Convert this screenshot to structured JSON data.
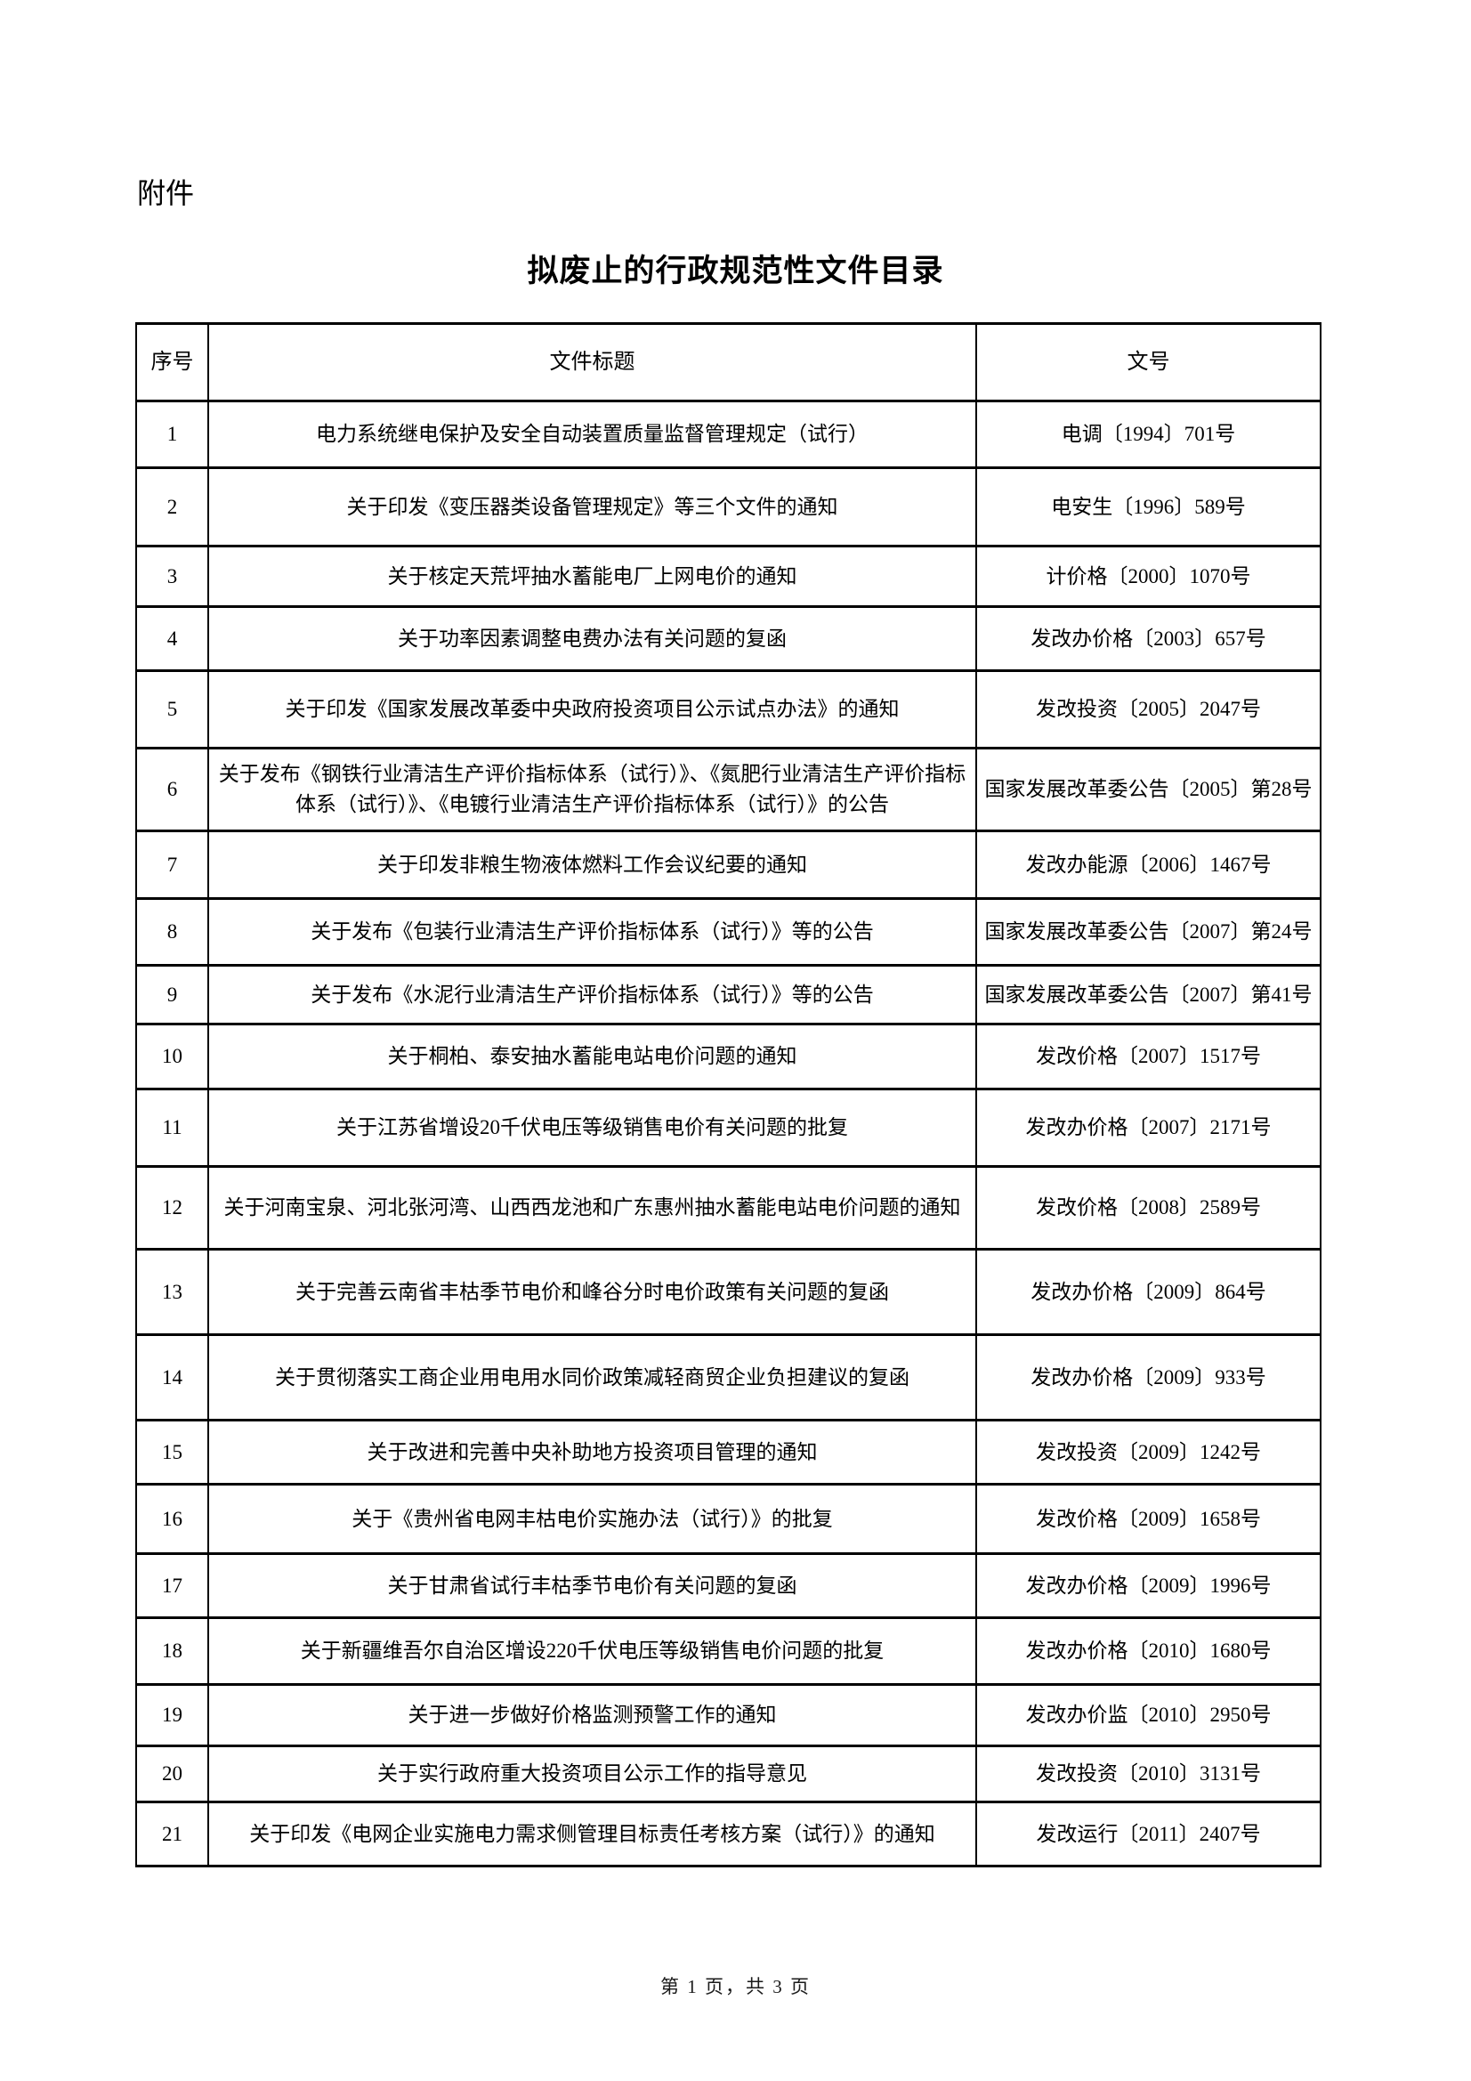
{
  "page": {
    "attachment_label": "附件",
    "title": "拟废止的行政规范性文件目录",
    "footer": "第 1 页，共 3 页"
  },
  "table": {
    "headers": [
      "序号",
      "文件标题",
      "文号"
    ],
    "rows": [
      {
        "no": "1",
        "title": "电力系统继电保护及安全自动装置质量监督管理规定（试行）",
        "doc_no": "电调〔1994〕701号"
      },
      {
        "no": "2",
        "title": "关于印发《变压器类设备管理规定》等三个文件的通知",
        "doc_no": "电安生〔1996〕589号"
      },
      {
        "no": "3",
        "title": "关于核定天荒坪抽水蓄能电厂上网电价的通知",
        "doc_no": "计价格〔2000〕1070号"
      },
      {
        "no": "4",
        "title": "关于功率因素调整电费办法有关问题的复函",
        "doc_no": "发改办价格〔2003〕657号"
      },
      {
        "no": "5",
        "title": "关于印发《国家发展改革委中央政府投资项目公示试点办法》的通知",
        "doc_no": "发改投资〔2005〕2047号"
      },
      {
        "no": "6",
        "title": "关于发布《钢铁行业清洁生产评价指标体系（试行）》、《氮肥行业清洁生产评价指标体系（试行）》、《电镀行业清洁生产评价指标体系（试行）》的公告",
        "doc_no": "国家发展改革委公告〔2005〕第28号"
      },
      {
        "no": "7",
        "title": "关于印发非粮生物液体燃料工作会议纪要的通知",
        "doc_no": "发改办能源〔2006〕1467号"
      },
      {
        "no": "8",
        "title": "关于发布《包装行业清洁生产评价指标体系（试行）》等的公告",
        "doc_no": "国家发展改革委公告〔2007〕第24号"
      },
      {
        "no": "9",
        "title": "关于发布《水泥行业清洁生产评价指标体系（试行）》等的公告",
        "doc_no": "国家发展改革委公告〔2007〕第41号"
      },
      {
        "no": "10",
        "title": "关于桐柏、泰安抽水蓄能电站电价问题的通知",
        "doc_no": "发改价格〔2007〕1517号"
      },
      {
        "no": "11",
        "title": "关于江苏省增设20千伏电压等级销售电价有关问题的批复",
        "doc_no": "发改办价格〔2007〕2171号"
      },
      {
        "no": "12",
        "title": "关于河南宝泉、河北张河湾、山西西龙池和广东惠州抽水蓄能电站电价问题的通知",
        "doc_no": "发改价格〔2008〕2589号"
      },
      {
        "no": "13",
        "title": "关于完善云南省丰枯季节电价和峰谷分时电价政策有关问题的复函",
        "doc_no": "发改办价格〔2009〕864号"
      },
      {
        "no": "14",
        "title": "关于贯彻落实工商企业用电用水同价政策减轻商贸企业负担建议的复函",
        "doc_no": "发改办价格〔2009〕933号"
      },
      {
        "no": "15",
        "title": "关于改进和完善中央补助地方投资项目管理的通知",
        "doc_no": "发改投资〔2009〕1242号"
      },
      {
        "no": "16",
        "title": "关于《贵州省电网丰枯电价实施办法（试行）》的批复",
        "doc_no": "发改价格〔2009〕1658号"
      },
      {
        "no": "17",
        "title": "关于甘肃省试行丰枯季节电价有关问题的复函",
        "doc_no": "发改办价格〔2009〕1996号"
      },
      {
        "no": "18",
        "title": "关于新疆维吾尔自治区增设220千伏电压等级销售电价问题的批复",
        "doc_no": "发改办价格〔2010〕1680号"
      },
      {
        "no": "19",
        "title": "关于进一步做好价格监测预警工作的通知",
        "doc_no": "发改办价监〔2010〕2950号"
      },
      {
        "no": "20",
        "title": "关于实行政府重大投资项目公示工作的指导意见",
        "doc_no": "发改投资〔2010〕3131号"
      },
      {
        "no": "21",
        "title": "关于印发《电网企业实施电力需求侧管理目标责任考核方案（试行）》的通知",
        "doc_no": "发改运行〔2011〕2407号"
      }
    ]
  }
}
